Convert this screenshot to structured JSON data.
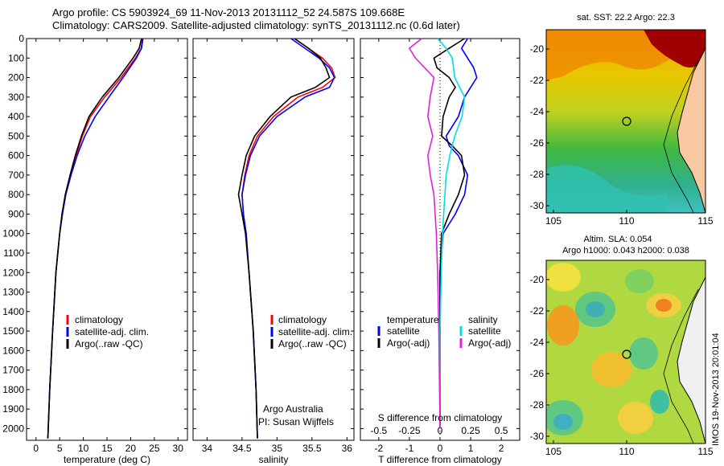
{
  "header": {
    "line1": "Argo profile: CS 5903924_69 11-Nov-2013 20131112_52 24.587S 109.668E",
    "line2": "Climatology: CARS2009. Satellite-adjusted climatology: synTS_20131112.nc (0.6d later)"
  },
  "colors": {
    "climatology": "#ff0000",
    "satellite": "#0000ff",
    "argo": "#000000",
    "sat_salinity": "#00e0e0",
    "argo_salinity": "#e020e0"
  },
  "chart_data": [
    {
      "type": "line",
      "xlabel": "temperature (deg C)",
      "xlim": [
        -2,
        32
      ],
      "xticks": [
        0,
        5,
        10,
        15,
        20,
        25,
        30
      ],
      "ylim": [
        0,
        2060
      ],
      "yticks": [
        0,
        100,
        200,
        300,
        400,
        500,
        600,
        700,
        800,
        900,
        1000,
        1100,
        1200,
        1300,
        1400,
        1500,
        1600,
        1700,
        1800,
        1900,
        2000
      ],
      "legend": [
        "climatology",
        "satellite-adj. clim.",
        "Argo(..raw -QC)"
      ],
      "series": [
        {
          "name": "climatology",
          "color": "#ff0000",
          "depth": [
            0,
            50,
            100,
            200,
            300,
            400,
            500,
            600,
            700,
            800,
            900,
            1000,
            1200,
            1500,
            1800,
            2050
          ],
          "values": [
            22.5,
            22.2,
            21,
            18,
            14.5,
            11.5,
            9.8,
            8.5,
            7.3,
            6.2,
            5.5,
            5.0,
            4.2,
            3.5,
            2.9,
            2.5
          ]
        },
        {
          "name": "satellite-adj. clim.",
          "color": "#0000ff",
          "depth": [
            0,
            50,
            100,
            200,
            300,
            400,
            500,
            600,
            700,
            800,
            900,
            1000,
            1200,
            1500,
            1800,
            2050
          ],
          "values": [
            22.6,
            22.3,
            21.2,
            18.4,
            15.4,
            12.5,
            10.3,
            8.7,
            7.4,
            6.3,
            5.6,
            5.0,
            4.2,
            3.5,
            2.9,
            2.5
          ]
        },
        {
          "name": "Argo(..raw -QC)",
          "color": "#000000",
          "depth": [
            0,
            50,
            100,
            200,
            300,
            400,
            500,
            600,
            700,
            800,
            900,
            1000,
            1200,
            1500,
            1800,
            2050
          ],
          "values": [
            22.3,
            21.8,
            20.5,
            17.5,
            14.0,
            11.2,
            9.6,
            8.3,
            7.2,
            6.2,
            5.5,
            5.0,
            4.2,
            3.5,
            2.9,
            2.5
          ]
        }
      ]
    },
    {
      "type": "line",
      "xlabel": "salinity",
      "xlim": [
        33.8,
        36.1
      ],
      "xticks": [
        34,
        34.5,
        35,
        35.5,
        36
      ],
      "ylim": [
        0,
        2060
      ],
      "legend": [
        "climatology",
        "satellite-adj. clim.",
        "Argo(..raw -QC)"
      ],
      "annotation": [
        "Argo Australia",
        "PI: Susan Wijffels"
      ],
      "series": [
        {
          "name": "climatology",
          "color": "#ff0000",
          "depth": [
            0,
            50,
            100,
            150,
            200,
            250,
            300,
            400,
            500,
            600,
            700,
            800,
            900,
            1000,
            1200,
            1500,
            1800,
            2050
          ],
          "values": [
            35.25,
            35.45,
            35.65,
            35.78,
            35.83,
            35.65,
            35.3,
            34.95,
            34.72,
            34.6,
            34.54,
            34.5,
            34.52,
            34.55,
            34.6,
            34.66,
            34.7,
            34.72
          ]
        },
        {
          "name": "satellite-adj. clim.",
          "color": "#0000ff",
          "depth": [
            0,
            50,
            100,
            150,
            200,
            250,
            300,
            400,
            500,
            600,
            700,
            800,
            900,
            1000,
            1200,
            1500,
            1800,
            2050
          ],
          "values": [
            35.2,
            35.4,
            35.6,
            35.75,
            35.82,
            35.75,
            35.4,
            35.0,
            34.75,
            34.62,
            34.55,
            34.5,
            34.52,
            34.56,
            34.6,
            34.66,
            34.7,
            34.72
          ]
        },
        {
          "name": "Argo(..raw -QC)",
          "color": "#000000",
          "depth": [
            0,
            50,
            100,
            150,
            200,
            250,
            300,
            400,
            500,
            600,
            700,
            800,
            900,
            1000,
            1200,
            1500,
            1800,
            2050
          ],
          "values": [
            35.25,
            35.45,
            35.62,
            35.7,
            35.75,
            35.55,
            35.2,
            34.9,
            34.68,
            34.56,
            34.5,
            34.45,
            34.5,
            34.55,
            34.6,
            34.66,
            34.7,
            34.72
          ]
        }
      ]
    },
    {
      "type": "line",
      "xlabel": "T difference from climatology",
      "xlabel_top": "S difference from climatology",
      "xlim": [
        -2.6,
        2.6
      ],
      "xticks": [
        -2,
        -1,
        0,
        1,
        2
      ],
      "xticks_top": [
        -0.5,
        -0.25,
        0,
        0.25,
        0.5
      ],
      "ylim": [
        0,
        2060
      ],
      "legend": [
        {
          "group": "temperature",
          "items": [
            "satellite",
            "Argo(-adj)"
          ]
        },
        {
          "group": "salinity",
          "items": [
            "satellite",
            "Argo(-adj)"
          ]
        }
      ],
      "series": [
        {
          "name": "temperature satellite",
          "color": "#0000ff",
          "depth": [
            0,
            50,
            100,
            150,
            200,
            250,
            300,
            400,
            500,
            550,
            600,
            700,
            800,
            900,
            1000,
            1200,
            1500,
            2000
          ],
          "values": [
            0.9,
            0.7,
            0.9,
            1.1,
            1.2,
            1.0,
            0.8,
            0.6,
            0.2,
            0.3,
            0.6,
            0.9,
            0.8,
            0.5,
            0.1,
            0,
            0,
            0
          ]
        },
        {
          "name": "temperature Argo(-adj)",
          "color": "#000000",
          "depth": [
            0,
            50,
            100,
            150,
            200,
            250,
            300,
            400,
            500,
            550,
            600,
            700,
            800,
            900,
            1000,
            1200,
            1500,
            2000
          ],
          "values": [
            0.8,
            0.3,
            -0.2,
            -0.1,
            0.3,
            0.5,
            0.3,
            0.1,
            0.05,
            0.4,
            0.7,
            0.8,
            0.6,
            0.3,
            0.05,
            0,
            0,
            0
          ]
        },
        {
          "name": "salinity satellite",
          "color": "#00e0e0",
          "depth": [
            0,
            50,
            100,
            200,
            300,
            400,
            500,
            600,
            700,
            800,
            1000,
            1200,
            1500,
            2000
          ],
          "values": [
            -0.02,
            0.05,
            0.1,
            0.12,
            0.2,
            0.18,
            0.12,
            0.08,
            0.05,
            0.04,
            0.02,
            0.01,
            0,
            0
          ]
        },
        {
          "name": "salinity Argo(-adj)",
          "color": "#e020e0",
          "depth": [
            0,
            50,
            100,
            200,
            300,
            400,
            500,
            600,
            700,
            800,
            1000,
            1200,
            1500,
            2000
          ],
          "values": [
            -0.15,
            -0.25,
            -0.2,
            -0.05,
            -0.08,
            -0.1,
            -0.06,
            -0.1,
            -0.08,
            -0.05,
            -0.03,
            -0.02,
            -0.01,
            0
          ]
        }
      ]
    }
  ],
  "maps": {
    "sst_title": "sat. SST: 22.2 Argo: 22.3",
    "sla_title_1": "Altim. SLA: 0.054",
    "sla_title_2": "Argo h1000: 0.043 h2000: 0.038",
    "xticks": [
      "105",
      "110",
      "115"
    ],
    "yticks": [
      "-20",
      "-22",
      "-24",
      "-26",
      "-28",
      "-30"
    ],
    "float_position": {
      "lon": 109.668,
      "lat": -24.587
    }
  },
  "footer": {
    "stamp": "IMOS 19-Nov-2013 20:01:04"
  }
}
